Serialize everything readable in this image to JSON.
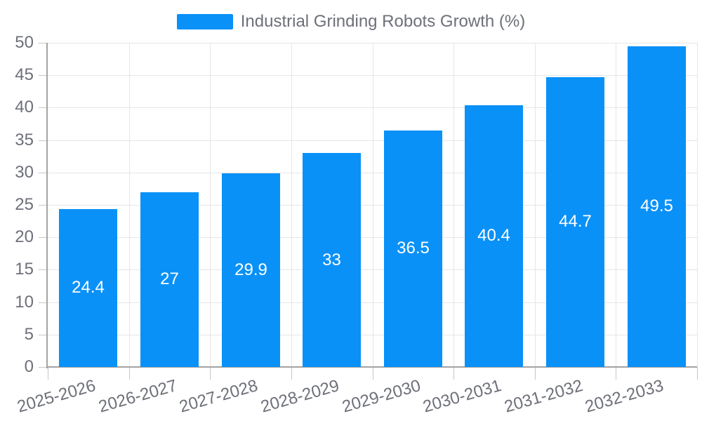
{
  "legend": {
    "label": "Industrial Grinding Robots Growth (%)"
  },
  "chart_data": {
    "type": "bar",
    "title": "Industrial Grinding Robots Growth (%)",
    "categories": [
      "2025-2026",
      "2026-2027",
      "2027-2028",
      "2028-2029",
      "2029-2030",
      "2030-2031",
      "2031-2032",
      "2032-2033"
    ],
    "values": [
      24.4,
      27,
      29.9,
      33,
      36.5,
      40.4,
      44.7,
      49.5
    ],
    "value_labels": [
      "24.4",
      "27",
      "29.9",
      "33",
      "36.5",
      "40.4",
      "44.7",
      "49.5"
    ],
    "xlabel": "",
    "ylabel": "",
    "ylim": [
      0,
      50
    ],
    "ytick_step": 5,
    "ytick_labels": [
      "0",
      "5",
      "10",
      "15",
      "20",
      "25",
      "30",
      "35",
      "40",
      "45",
      "50"
    ],
    "grid": true,
    "legend_position": "top-center",
    "value_label_position": "inside-middle",
    "colors": {
      "bar": "#0991f8",
      "grid_line": "#e6e6e6",
      "axis_line": "#a3a3a3",
      "tick_line": "#c6c6c6",
      "axis_text": "#6e7079",
      "value_text": "#ffffff",
      "background": "#ffffff"
    }
  }
}
